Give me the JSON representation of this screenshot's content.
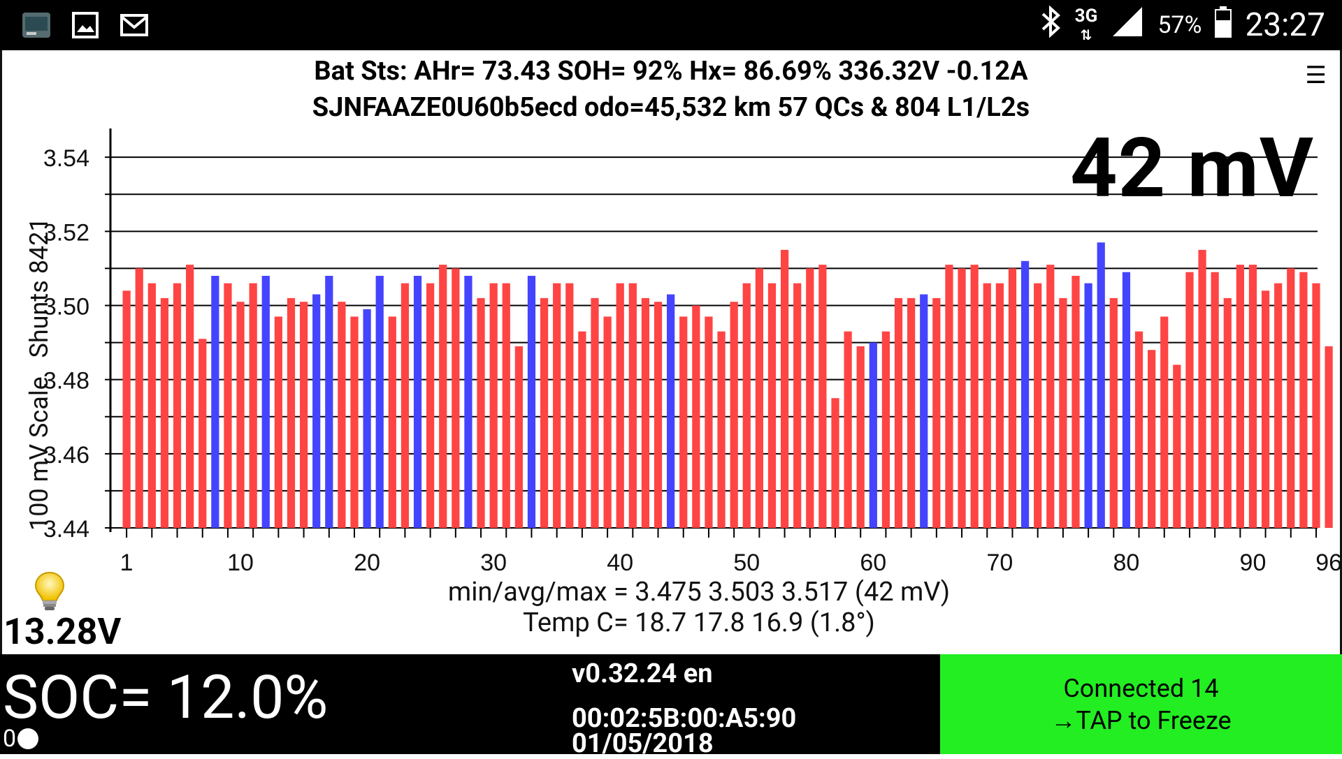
{
  "status_bar": {
    "icons_left": [
      "app-thumbnail-icon",
      "gallery-icon",
      "gmail-icon"
    ],
    "network": "3G",
    "battery_pct": "57%",
    "time": "23:27"
  },
  "header": {
    "line1": "Bat Sts:  AHr= 73.43  SOH= 92%   Hx= 86.69%   336.32V -0.12A",
    "line2": "SJNFAAZE0U60b5ecd odo=45,532 km  57 QCs  &  804 L1/L2s",
    "spread": "42 mV",
    "menu_glyph": "☰"
  },
  "chart_data": {
    "type": "bar",
    "ylabel": "100 mV Scale   Shunts 8421",
    "ylim": [
      3.44,
      3.547
    ],
    "yticks": [
      "3.54",
      "3.52",
      "3.50",
      "3.48",
      "3.46",
      "3.44"
    ],
    "xticks": [
      "1",
      "10",
      "20",
      "30",
      "40",
      "50",
      "60",
      "70",
      "80",
      "90",
      "96"
    ],
    "series_colors": {
      "normal": "#ff4444",
      "shunt": "#4444ff"
    },
    "cells": [
      3.504,
      3.51,
      3.506,
      3.502,
      3.506,
      3.511,
      3.491,
      3.508,
      3.506,
      3.501,
      3.506,
      3.508,
      3.497,
      3.502,
      3.501,
      3.503,
      3.508,
      3.501,
      3.497,
      3.499,
      3.508,
      3.497,
      3.506,
      3.508,
      3.506,
      3.511,
      3.51,
      3.508,
      3.502,
      3.506,
      3.506,
      3.489,
      3.508,
      3.502,
      3.506,
      3.506,
      3.493,
      3.502,
      3.497,
      3.506,
      3.506,
      3.502,
      3.501,
      3.503,
      3.497,
      3.5,
      3.497,
      3.493,
      3.501,
      3.506,
      3.51,
      3.506,
      3.515,
      3.506,
      3.51,
      3.511,
      3.475,
      3.493,
      3.489,
      3.49,
      3.493,
      3.502,
      3.502,
      3.503,
      3.502,
      3.511,
      3.51,
      3.511,
      3.506,
      3.506,
      3.51,
      3.512,
      3.506,
      3.511,
      3.502,
      3.508,
      3.506,
      3.517,
      3.502,
      3.509,
      3.493,
      3.488,
      3.497,
      3.484,
      3.509,
      3.515,
      3.509,
      3.502,
      3.511,
      3.511,
      3.504,
      3.506,
      3.51,
      3.509,
      3.506,
      3.489
    ],
    "shunted": [
      8,
      12,
      16,
      17,
      20,
      21,
      24,
      28,
      33,
      44,
      60,
      64,
      72,
      77,
      78,
      80
    ]
  },
  "stats": {
    "line1": "min/avg/max = 3.475 3.503 3.517  (42 mV)",
    "line2": "Temp C= 18.7  17.8  16.9  (1.8°)"
  },
  "aux_battery": "13.28V",
  "bottom": {
    "soc": "SOC= 12.0%",
    "soc_indicator": "0",
    "version": "v0.32.24 en",
    "mac": "00:02:5B:00:A5:90",
    "date": "01/05/2018",
    "connect_line1": "Connected 14",
    "connect_line2": "→TAP to Freeze",
    "connect_color": "#22ee22"
  }
}
